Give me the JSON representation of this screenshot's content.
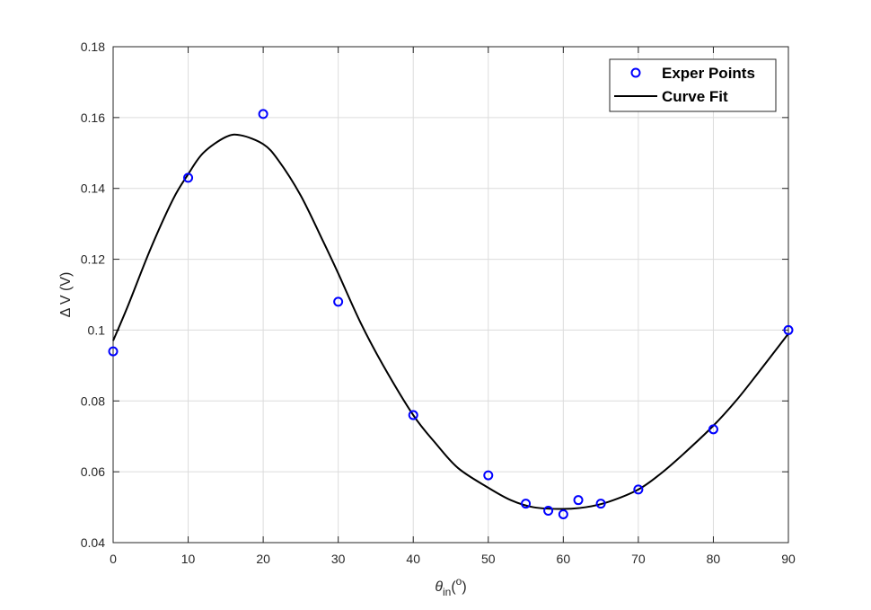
{
  "chart_data": {
    "type": "scatter",
    "xlabel": {
      "main": "θ",
      "sub": "in",
      "paren_open": "(",
      "sup": "o",
      "paren_close": ")"
    },
    "ylabel": "Δ V (V)",
    "xlim": [
      0,
      90
    ],
    "ylim": [
      0.04,
      0.18
    ],
    "xticks": [
      "0",
      "10",
      "20",
      "30",
      "40",
      "50",
      "60",
      "70",
      "80",
      "90"
    ],
    "yticks": [
      "0.04",
      "0.06",
      "0.08",
      "0.1",
      "0.12",
      "0.14",
      "0.16",
      "0.18"
    ],
    "grid": true,
    "legend_placement": "top-right",
    "series": [
      {
        "name": "Exper Points",
        "kind": "markers",
        "color": "#0000ff",
        "x": [
          0,
          10,
          20,
          30,
          40,
          50,
          55,
          58,
          60,
          62,
          65,
          70,
          80,
          90
        ],
        "y": [
          0.094,
          0.143,
          0.161,
          0.108,
          0.076,
          0.059,
          0.051,
          0.049,
          0.048,
          0.052,
          0.051,
          0.055,
          0.072,
          0.1
        ]
      },
      {
        "name": "Curve Fit",
        "kind": "line",
        "color": "#000000",
        "x": [
          0,
          2,
          5,
          8,
          10,
          12,
          15,
          17,
          20,
          22,
          25,
          28,
          30,
          33,
          36,
          40,
          43,
          46,
          50,
          53,
          56,
          60,
          63,
          66,
          70,
          73,
          76,
          80,
          83,
          86,
          90
        ],
        "y": [
          0.097,
          0.107,
          0.123,
          0.137,
          0.144,
          0.15,
          0.1545,
          0.155,
          0.1525,
          0.148,
          0.138,
          0.125,
          0.116,
          0.102,
          0.09,
          0.076,
          0.068,
          0.061,
          0.0555,
          0.052,
          0.05,
          0.0495,
          0.05,
          0.0515,
          0.055,
          0.0595,
          0.065,
          0.073,
          0.08,
          0.088,
          0.099
        ]
      }
    ]
  }
}
